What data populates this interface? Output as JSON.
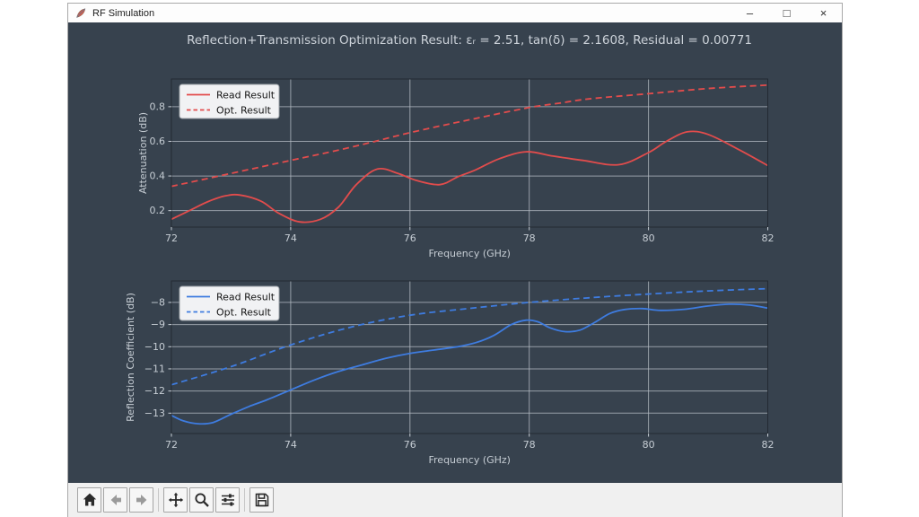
{
  "window": {
    "title": "RF Simulation",
    "controls": [
      {
        "name": "minimize",
        "glyph": "–"
      },
      {
        "name": "maximize",
        "glyph": "□"
      },
      {
        "name": "close",
        "glyph": "×"
      }
    ]
  },
  "figure": {
    "title": "Reflection+Transmission Optimization Result: εᵣ = 2.51, tan(δ) = 2.1608, Residual = 0.00771",
    "background": "#37424e",
    "grid_color": "#b7bec6",
    "text_color": "#c6cdd4"
  },
  "chart_data": [
    {
      "type": "line",
      "xlabel": "Frequency (GHz)",
      "ylabel": "Attenuation (dB)",
      "xlim": [
        72,
        82
      ],
      "ylim": [
        0.105,
        0.96
      ],
      "xticks": [
        72,
        74,
        76,
        78,
        80,
        82
      ],
      "xtick_labels": [
        "72",
        "74",
        "76",
        "78",
        "80",
        "82"
      ],
      "yticks": [
        0.2,
        0.4,
        0.6,
        0.8
      ],
      "ytick_labels": [
        "0.2",
        "0.4",
        "0.6",
        "0.8"
      ],
      "grid": true,
      "legend": {
        "position": "upper left"
      },
      "series": [
        {
          "name": "Read Result",
          "line_style": "solid",
          "color": "#e24c4c",
          "x": [
            72.0,
            72.3,
            72.6,
            72.9,
            73.15,
            73.5,
            73.8,
            74.15,
            74.5,
            74.8,
            75.1,
            75.45,
            75.8,
            76.1,
            76.5,
            76.8,
            77.1,
            77.5,
            77.95,
            78.4,
            78.9,
            79.5,
            80.0,
            80.3,
            80.65,
            81.0,
            81.5,
            82.0
          ],
          "y": [
            0.15,
            0.2,
            0.25,
            0.285,
            0.29,
            0.255,
            0.185,
            0.135,
            0.15,
            0.22,
            0.35,
            0.44,
            0.415,
            0.375,
            0.35,
            0.395,
            0.435,
            0.5,
            0.54,
            0.515,
            0.49,
            0.465,
            0.535,
            0.6,
            0.655,
            0.64,
            0.555,
            0.46
          ]
        },
        {
          "name": "Opt. Result",
          "line_style": "dashed",
          "color": "#e24c4c",
          "x": [
            72,
            73,
            74,
            75,
            76,
            77,
            78,
            78.5,
            79,
            80,
            81,
            82
          ],
          "y": [
            0.34,
            0.415,
            0.49,
            0.565,
            0.65,
            0.725,
            0.795,
            0.82,
            0.845,
            0.875,
            0.905,
            0.925
          ]
        }
      ]
    },
    {
      "type": "line",
      "xlabel": "Frequency (GHz)",
      "ylabel": "Reflection Coefficient (dB)",
      "xlim": [
        72,
        82
      ],
      "ylim": [
        -13.92,
        -7.03
      ],
      "xticks": [
        72,
        74,
        76,
        78,
        80,
        82
      ],
      "xtick_labels": [
        "72",
        "74",
        "76",
        "78",
        "80",
        "82"
      ],
      "yticks": [
        -8,
        -9,
        -10,
        -11,
        -12,
        -13
      ],
      "ytick_labels": [
        "−8",
        "−9",
        "−10",
        "−11",
        "−12",
        "−13"
      ],
      "grid": true,
      "legend": {
        "position": "upper left"
      },
      "series": [
        {
          "name": "Read Result",
          "line_style": "solid",
          "color": "#3e7ce0",
          "x": [
            72.0,
            72.2,
            72.45,
            72.7,
            73.0,
            73.3,
            73.6,
            74.0,
            74.4,
            74.8,
            75.2,
            75.6,
            76.0,
            76.4,
            76.8,
            77.1,
            77.4,
            77.7,
            77.95,
            78.15,
            78.35,
            78.6,
            78.85,
            79.1,
            79.35,
            79.6,
            79.9,
            80.2,
            80.6,
            81.0,
            81.35,
            81.7,
            82.0
          ],
          "y": [
            -13.1,
            -13.35,
            -13.48,
            -13.42,
            -13.05,
            -12.7,
            -12.4,
            -11.95,
            -11.5,
            -11.12,
            -10.82,
            -10.52,
            -10.3,
            -10.15,
            -10.0,
            -9.82,
            -9.5,
            -9.0,
            -8.8,
            -8.88,
            -9.15,
            -9.32,
            -9.25,
            -8.9,
            -8.5,
            -8.32,
            -8.28,
            -8.36,
            -8.31,
            -8.16,
            -8.08,
            -8.12,
            -8.26
          ]
        },
        {
          "name": "Opt. Result",
          "line_style": "dashed",
          "color": "#3e7ce0",
          "x": [
            72,
            73,
            74,
            75,
            76,
            77,
            78,
            79,
            80,
            81,
            82
          ],
          "y": [
            -11.72,
            -10.9,
            -9.92,
            -9.12,
            -8.58,
            -8.27,
            -8.0,
            -7.79,
            -7.62,
            -7.48,
            -7.38
          ]
        }
      ]
    }
  ],
  "toolbar": {
    "buttons": [
      "home",
      "back",
      "forward",
      "sep",
      "pan",
      "zoom",
      "configure-subplots",
      "sep",
      "save"
    ]
  }
}
